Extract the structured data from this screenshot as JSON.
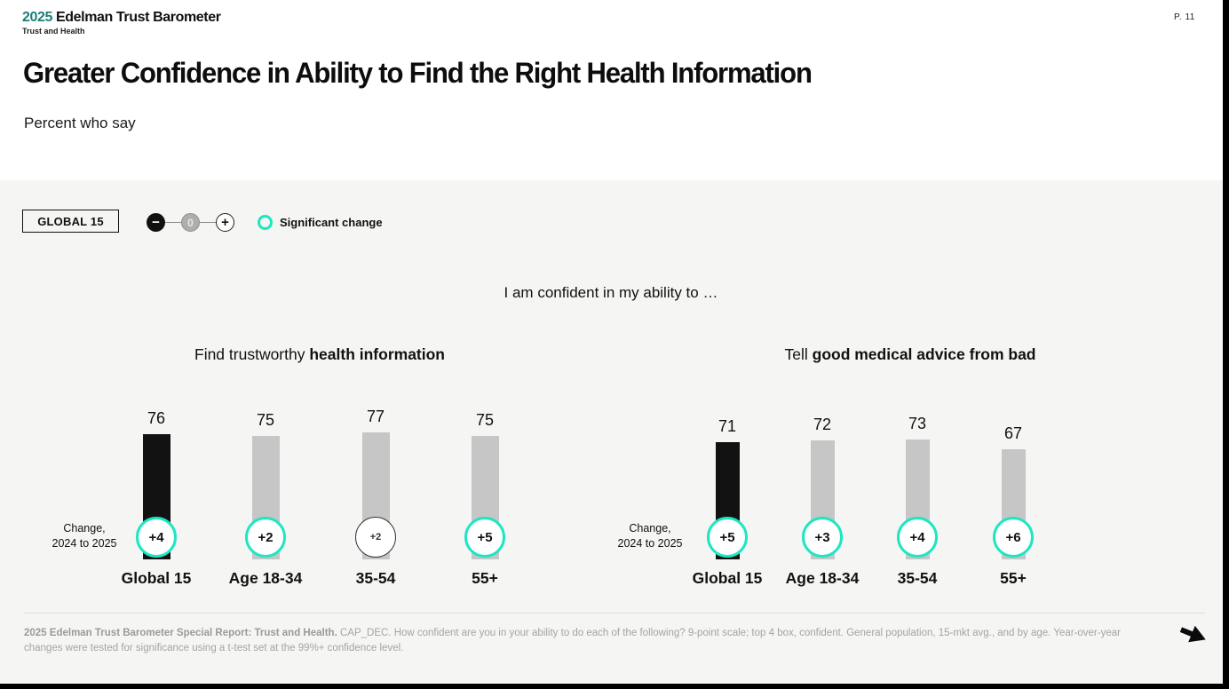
{
  "header": {
    "logo_year": "2025",
    "logo_brand": "Edelman Trust Barometer",
    "logo_subtitle": "Trust and Health",
    "page_number": "P. 11",
    "title": "Greater Confidence in Ability to Find the Right Health Information",
    "subtitle": "Percent who say"
  },
  "controls": {
    "market_selector_label": "GLOBAL 15",
    "stepper": {
      "minus": "−",
      "value": "0",
      "plus": "+"
    },
    "legend_label": "Significant change"
  },
  "chart_data": {
    "type": "bar",
    "title": "I am confident in my ability to …",
    "unit": "percent",
    "ylim": [
      0,
      100
    ],
    "categories": [
      "Global 15",
      "Age 18-34",
      "35-54",
      "55+"
    ],
    "colors": {
      "highlight_bar": "#121212",
      "bar": "#c6c6c6",
      "significant": "#1ee6c3",
      "panel_bg": "#f5f5f4"
    },
    "groups": [
      {
        "title_regular": "Find trustworthy ",
        "title_bold": "health information",
        "change_line1": "Change,",
        "change_line2": "2024 to 2025",
        "bars": [
          {
            "label": "Global 15",
            "value": 76,
            "change": "+4",
            "significant": true,
            "highlight": true
          },
          {
            "label": "Age 18-34",
            "value": 75,
            "change": "+2",
            "significant": true,
            "highlight": false
          },
          {
            "label": "35-54",
            "value": 77,
            "change": "+2",
            "significant": false,
            "highlight": false
          },
          {
            "label": "55+",
            "value": 75,
            "change": "+5",
            "significant": true,
            "highlight": false
          }
        ]
      },
      {
        "title_regular": "Tell ",
        "title_bold": "good medical advice from bad",
        "change_line1": "Change,",
        "change_line2": "2024 to 2025",
        "bars": [
          {
            "label": "Global 15",
            "value": 71,
            "change": "+5",
            "significant": true,
            "highlight": true
          },
          {
            "label": "Age 18-34",
            "value": 72,
            "change": "+3",
            "significant": true,
            "highlight": false
          },
          {
            "label": "35-54",
            "value": 73,
            "change": "+4",
            "significant": true,
            "highlight": false
          },
          {
            "label": "55+",
            "value": 67,
            "change": "+6",
            "significant": true,
            "highlight": false
          }
        ]
      }
    ]
  },
  "footer": {
    "source_bold": "2025 Edelman Trust Barometer Special Report: Trust and Health.",
    "source_rest": " CAP_DEC. How confident are you in your ability to do each of the following? 9-point scale; top 4 box, confident. General population, 15-mkt avg., and by age. Year-over-year changes were tested for significance using a t-test set at the 99%+ confidence level."
  }
}
